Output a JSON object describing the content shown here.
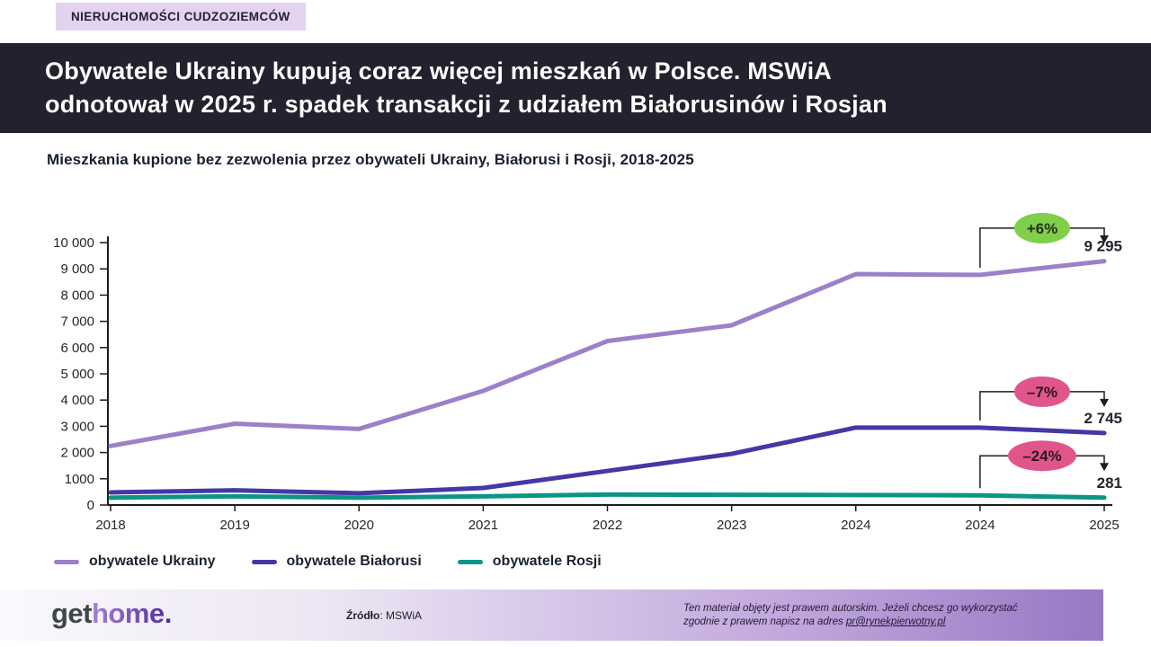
{
  "badge": {
    "label": "NIERUCHOMOŚCI CUDZOZIEMCÓW"
  },
  "header": {
    "title_line1": "Obywatele Ukrainy kupują coraz więcej mieszkań w Polsce. MSWiA",
    "title_line2": "odnotował w 2025 r. spadek transakcji z udziałem Białorusinów i Rosjan"
  },
  "subtitle": "Mieszkania kupione bez zezwolenia przez obywateli Ukrainy, Białorusi i Rosji, 2018-2025",
  "chart_data": {
    "type": "line",
    "title": "Mieszkania kupione bez zezwolenia przez obywateli Ukrainy, Białorusi i Rosji, 2018-2025",
    "categories": [
      "2018",
      "2019",
      "2020",
      "2021",
      "2022",
      "2023",
      "2024",
      "2024",
      "2025"
    ],
    "series": [
      {
        "name": "obywatele Ukrainy",
        "color": "#9d80ca",
        "values": [
          2250,
          3100,
          2900,
          4350,
          6250,
          6850,
          8800,
          8770,
          9295
        ]
      },
      {
        "name": "obywatele Białorusi",
        "color": "#4438a6",
        "values": [
          480,
          560,
          450,
          650,
          1300,
          1950,
          2950,
          2950,
          2745
        ]
      },
      {
        "name": "obywatele Rosji",
        "color": "#0d9488",
        "values": [
          280,
          330,
          280,
          330,
          400,
          390,
          380,
          370,
          281
        ]
      }
    ],
    "ylim": [
      0,
      10000
    ],
    "y_tick_labels": [
      "0",
      "1000",
      "2 000",
      "3 000",
      "4 000",
      "5 000",
      "6 000",
      "7 000",
      "8 000",
      "9 000",
      "10 000"
    ],
    "grid": false,
    "legend_position": "bottom",
    "annotations": [
      {
        "series": 0,
        "pct": "+6%",
        "value": "9 295",
        "pill_color": "#80cf4a",
        "pill_text_color": "#24301a",
        "offset": 52
      },
      {
        "series": 1,
        "pct": "–7%",
        "value": "2 745",
        "pill_color": "#e0568b",
        "pill_text_color": "#2d1622",
        "offset": 40
      },
      {
        "series": 2,
        "pct": "–24%",
        "value": "281",
        "pill_color": "#e0568b",
        "pill_text_color": "#2d1622",
        "offset": 44
      }
    ]
  },
  "footer": {
    "logo_get": "get",
    "logo_home": "home",
    "logo_dot": ".",
    "source_label": "Źródło",
    "source_value": ": MSWiA",
    "copyright_line1": "Ten materiał objęty jest prawem autorskim. Jeżeli chcesz go wykorzystać",
    "copyright_line2_prefix": "zgodnie z prawem napisz na adres ",
    "copyright_email": "pr@rynekpierwotny.pl"
  }
}
